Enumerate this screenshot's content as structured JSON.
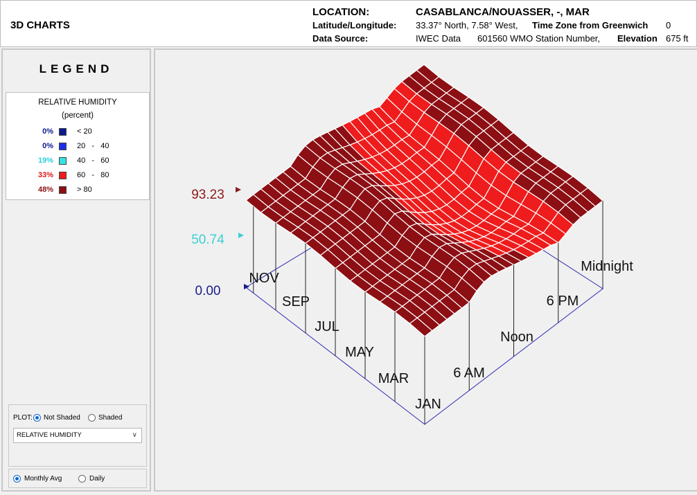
{
  "app": {
    "title": "3D CHARTS"
  },
  "location": {
    "label": "LOCATION:",
    "name": "CASABLANCA/NOUASSER, -, MAR",
    "latlon_label": "Latitude/Longitude:",
    "latlon_value": "33.37° North, 7.58° West,",
    "tz_label": "Time Zone from Greenwich",
    "tz_value": "0",
    "source_label": "Data Source:",
    "source_value": "IWEC Data",
    "station_value": "601560 WMO Station Number,",
    "elev_label": "Elevation",
    "elev_value": "675 ft"
  },
  "legend": {
    "title": "LEGEND",
    "variable": "RELATIVE HUMIDITY",
    "unit": "(percent)",
    "rows": [
      {
        "pct": "0%",
        "range": "< 20",
        "color": "#0b1a8c",
        "pct_color": "#0b1a8c"
      },
      {
        "pct": "0%",
        "range": "20   -   40",
        "color": "#1b2ee6",
        "pct_color": "#0b1a8c"
      },
      {
        "pct": "19%",
        "range": "40   -   60",
        "color": "#33e3e6",
        "pct_color": "#2ad0d6"
      },
      {
        "pct": "33%",
        "range": "60   -   80",
        "color": "#ee1c1c",
        "pct_color": "#d81a1a"
      },
      {
        "pct": "48%",
        "range": "> 80",
        "color": "#8c0f14",
        "pct_color": "#8c0f14"
      }
    ]
  },
  "controls": {
    "plot_label": "PLOT:",
    "not_shaded": "Not Shaded",
    "shaded": "Shaded",
    "variable_select": "RELATIVE HUMIDITY",
    "monthly": "Monthly Avg",
    "daily": "Daily"
  },
  "chart_data": {
    "type": "3d-surface",
    "variable": "Relative Humidity (percent)",
    "z_axis_labels": [
      {
        "text": "93.23",
        "color": "#8c1a1a"
      },
      {
        "text": "50.74",
        "color": "#3ccfd6"
      },
      {
        "text": "0.00",
        "color": "#1c1c8c"
      }
    ],
    "month_labels": [
      "JAN",
      "MAR",
      "MAY",
      "JUL",
      "SEP",
      "NOV"
    ],
    "hour_labels": [
      "6 AM",
      "Noon",
      "6 PM",
      "Midnight"
    ],
    "colors": {
      "low": "#33e3e6",
      "mid": "#ee1c1c",
      "high": "#8c0f14",
      "axis": "#2b2bb0"
    }
  }
}
